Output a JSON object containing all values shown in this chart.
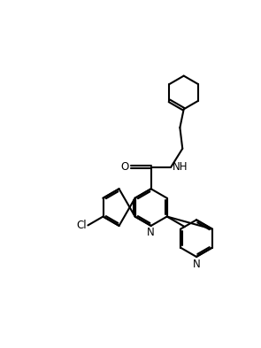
{
  "background_color": "#ffffff",
  "line_color": "#000000",
  "line_width": 1.5,
  "figsize": [
    2.95,
    3.93
  ],
  "dpi": 100,
  "xlim": [
    0,
    10
  ],
  "ylim": [
    0,
    13
  ]
}
